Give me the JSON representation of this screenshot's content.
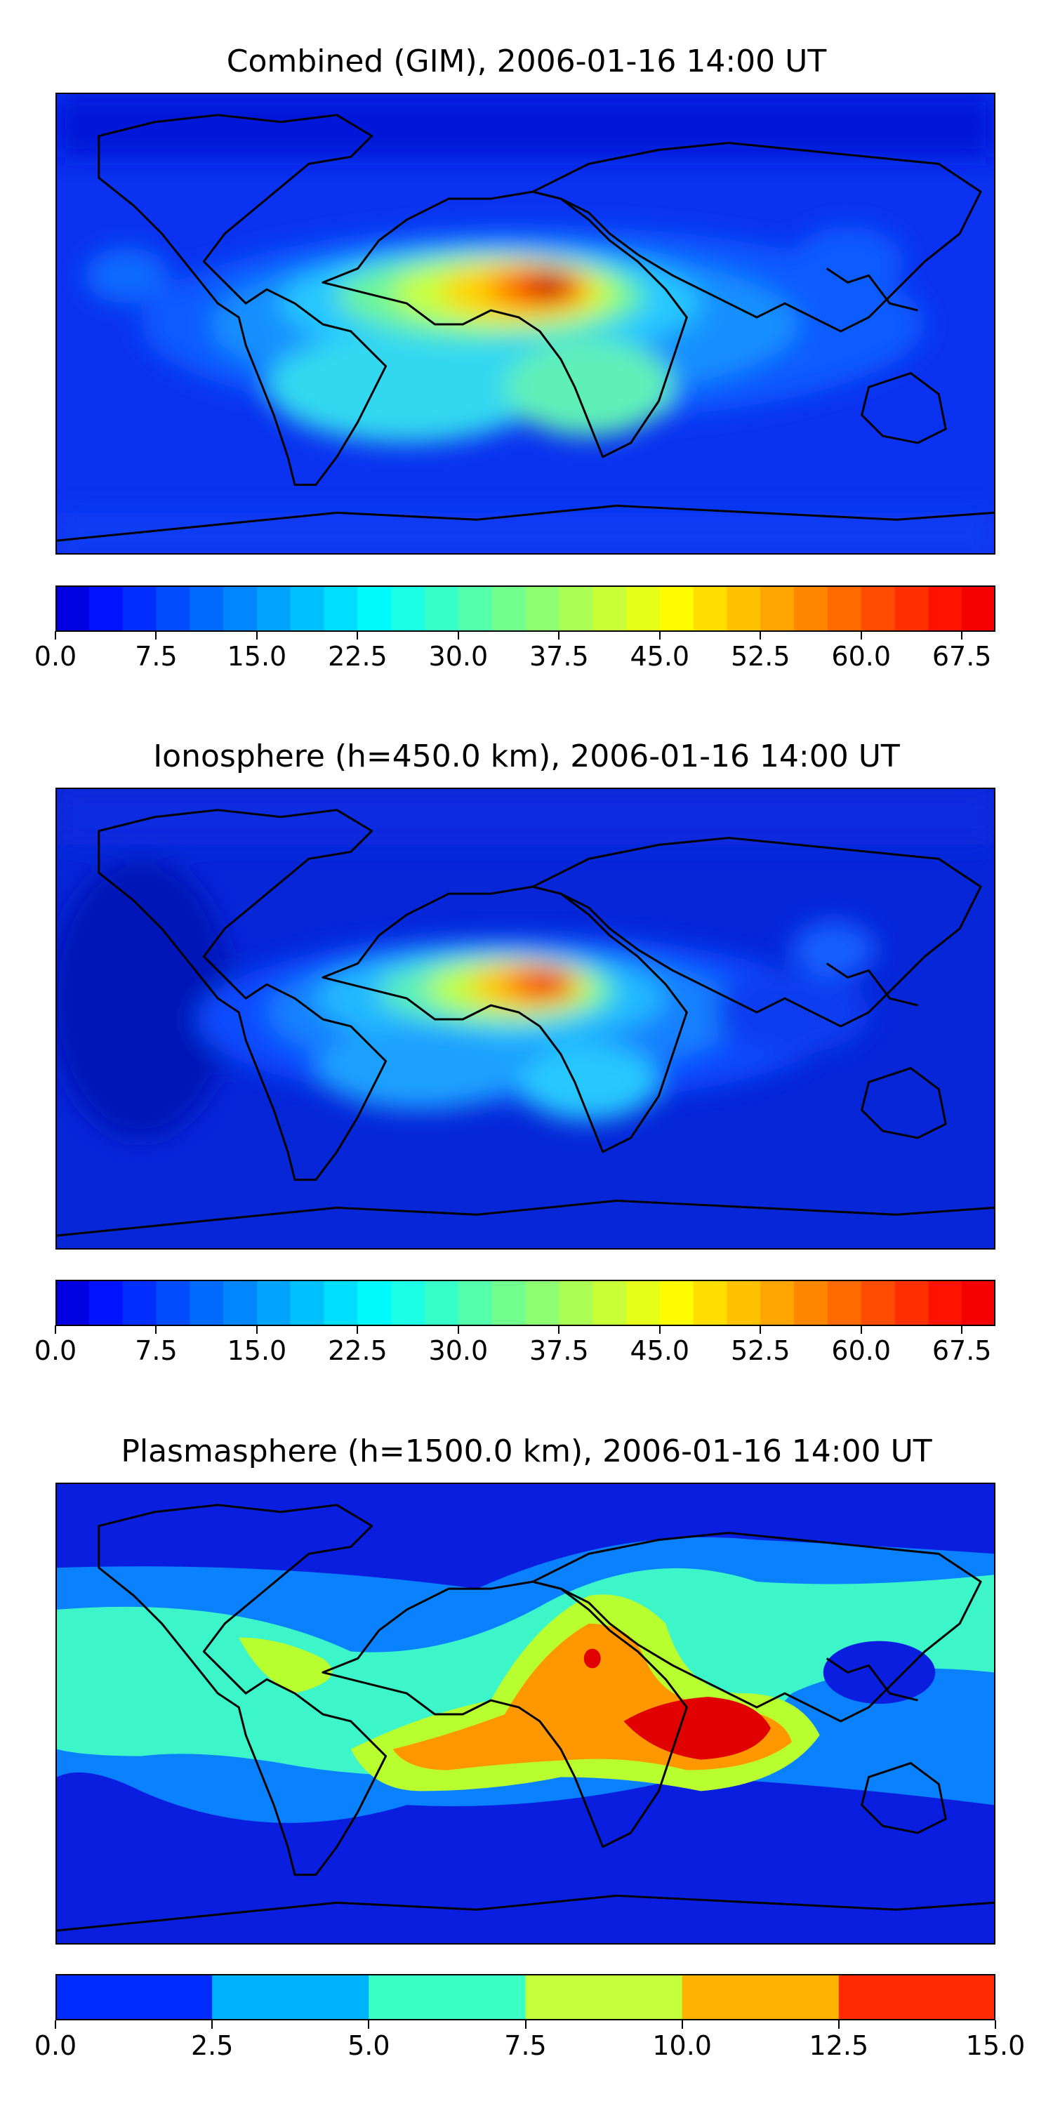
{
  "panels": [
    {
      "title": "Combined (GIM), 2006-01-16 14:00 UT",
      "colormap": "jet",
      "levels": [
        0,
        2.5,
        5,
        7.5,
        10,
        12.5,
        15,
        17.5,
        20,
        22.5,
        25,
        27.5,
        30,
        32.5,
        35,
        37.5,
        40,
        42.5,
        45,
        47.5,
        50,
        52.5,
        55,
        57.5,
        60,
        62.5,
        65,
        67.5,
        70
      ],
      "colorbar_ticks": [
        "0.0",
        "7.5",
        "15.0",
        "22.5",
        "30.0",
        "37.5",
        "45.0",
        "52.5",
        "60.0",
        "67.5"
      ]
    },
    {
      "title": "Ionosphere  (h=450.0 km), 2006-01-16 14:00 UT",
      "colormap": "jet",
      "levels": [
        0,
        2.5,
        5,
        7.5,
        10,
        12.5,
        15,
        17.5,
        20,
        22.5,
        25,
        27.5,
        30,
        32.5,
        35,
        37.5,
        40,
        42.5,
        45,
        47.5,
        50,
        52.5,
        55,
        57.5,
        60,
        62.5,
        65,
        67.5,
        70
      ],
      "colorbar_ticks": [
        "0.0",
        "7.5",
        "15.0",
        "22.5",
        "30.0",
        "37.5",
        "45.0",
        "52.5",
        "60.0",
        "67.5"
      ]
    },
    {
      "title": "Plasmasphere (h=1500.0 km), 2006-01-16 14:00 UT",
      "colormap": "jet",
      "levels": [
        0,
        2.5,
        5,
        7.5,
        10,
        12.5,
        15
      ],
      "colorbar_ticks": [
        "0.0",
        "2.5",
        "5.0",
        "7.5",
        "10.0",
        "12.5",
        "15.0"
      ]
    }
  ],
  "chart_data": [
    {
      "type": "heatmap",
      "title": "Combined (GIM), 2006-01-16 14:00 UT",
      "projection": "equirectangular world map",
      "xlim": [
        -180,
        180
      ],
      "ylim": [
        -90,
        90
      ],
      "zlim": [
        0,
        70
      ],
      "grid": false,
      "features": [
        {
          "lon": -10,
          "lat": 12,
          "value": 69,
          "desc": "peak over West Africa"
        },
        {
          "lon": -35,
          "lat": 10,
          "value": 42
        },
        {
          "lon": -60,
          "lat": 0,
          "value": 25
        },
        {
          "lon": 25,
          "lat": -10,
          "value": 35
        },
        {
          "lon": 70,
          "lat": 10,
          "value": 25
        },
        {
          "lon": 150,
          "lat": -30,
          "value": 10
        },
        {
          "lon": -150,
          "lat": 40,
          "value": 8
        }
      ]
    },
    {
      "type": "heatmap",
      "title": "Ionosphere  (h=450.0 km), 2006-01-16 14:00 UT",
      "projection": "equirectangular world map",
      "xlim": [
        -180,
        180
      ],
      "ylim": [
        -90,
        90
      ],
      "zlim": [
        0,
        70
      ],
      "grid": false,
      "features": [
        {
          "lon": -10,
          "lat": 12,
          "value": 63,
          "desc": "peak over West Africa"
        },
        {
          "lon": -35,
          "lat": 10,
          "value": 38
        },
        {
          "lon": -55,
          "lat": -5,
          "value": 20
        },
        {
          "lon": 20,
          "lat": -15,
          "value": 28
        },
        {
          "lon": 140,
          "lat": 0,
          "value": 8
        },
        {
          "lon": -150,
          "lat": 0,
          "value": 5
        }
      ]
    },
    {
      "type": "heatmap",
      "title": "Plasmasphere (h=1500.0 km), 2006-01-16 14:00 UT",
      "projection": "equirectangular world map",
      "xlim": [
        -180,
        180
      ],
      "ylim": [
        -90,
        90
      ],
      "zlim": [
        0,
        15
      ],
      "grid": false,
      "features": [
        {
          "lon": 70,
          "lat": 0,
          "value": 13,
          "desc": "maximum over Indian Ocean"
        },
        {
          "lon": 30,
          "lat": 25,
          "value": 13
        },
        {
          "lon": -20,
          "lat": -10,
          "value": 11
        },
        {
          "lon": -85,
          "lat": 15,
          "value": 8
        },
        {
          "lon": 150,
          "lat": 20,
          "value": 2
        },
        {
          "lon": -100,
          "lat": -40,
          "value": 2
        }
      ]
    }
  ]
}
